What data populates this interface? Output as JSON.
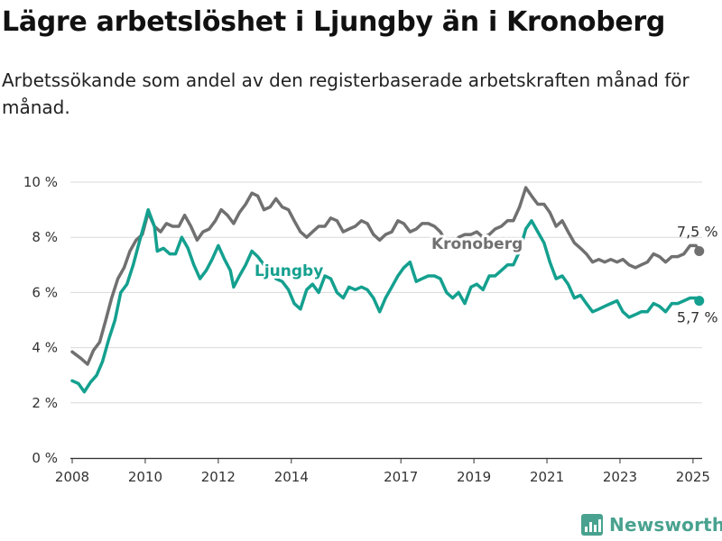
{
  "title": "Lägre arbetslöshet i Ljungby än i Kronoberg",
  "subtitle": "Arbetssökande som andel av den registerbaserade arbetskraften månad för månad.",
  "source_logo": {
    "text": "Newsworthy",
    "icon": "bar-chart-icon"
  },
  "colors": {
    "ljungby": "#14a08f",
    "kronoberg": "#707070",
    "grid": "#d9d9d9",
    "axis": "#333333"
  },
  "chart_data": {
    "type": "line",
    "title": "Lägre arbetslöshet i Ljungby än i Kronoberg",
    "xlabel": "",
    "ylabel": "",
    "xlim": [
      2007.95,
      2025.25
    ],
    "ylim": [
      0,
      10
    ],
    "grid": true,
    "legend": "inline labels",
    "y_ticks": [
      0,
      2,
      4,
      6,
      8,
      10
    ],
    "y_tick_labels": [
      "0 %",
      "2 %",
      "4 %",
      "6 %",
      "8 %",
      "10 %"
    ],
    "x_ticks": [
      2008,
      2010,
      2012,
      2014,
      2017,
      2019,
      2021,
      2023,
      2025
    ],
    "x_tick_labels": [
      "2008",
      "2010",
      "2012",
      "2014",
      "2017",
      "2019",
      "2021",
      "2023",
      "2025"
    ],
    "series": [
      {
        "name": "Kronoberg",
        "end_label": "7,5 %",
        "points": [
          [
            2008.0,
            3.85
          ],
          [
            2008.25,
            3.6
          ],
          [
            2008.42,
            3.4
          ],
          [
            2008.58,
            3.9
          ],
          [
            2008.75,
            4.2
          ],
          [
            2008.92,
            5.0
          ],
          [
            2009.08,
            5.8
          ],
          [
            2009.25,
            6.5
          ],
          [
            2009.42,
            6.9
          ],
          [
            2009.58,
            7.5
          ],
          [
            2009.75,
            7.9
          ],
          [
            2009.92,
            8.1
          ],
          [
            2010.08,
            8.9
          ],
          [
            2010.25,
            8.4
          ],
          [
            2010.42,
            8.2
          ],
          [
            2010.58,
            8.5
          ],
          [
            2010.75,
            8.4
          ],
          [
            2010.92,
            8.4
          ],
          [
            2011.08,
            8.8
          ],
          [
            2011.25,
            8.4
          ],
          [
            2011.42,
            7.9
          ],
          [
            2011.58,
            8.2
          ],
          [
            2011.75,
            8.3
          ],
          [
            2011.92,
            8.6
          ],
          [
            2012.08,
            9.0
          ],
          [
            2012.25,
            8.8
          ],
          [
            2012.42,
            8.5
          ],
          [
            2012.58,
            8.9
          ],
          [
            2012.75,
            9.2
          ],
          [
            2012.92,
            9.6
          ],
          [
            2013.08,
            9.5
          ],
          [
            2013.25,
            9.0
          ],
          [
            2013.42,
            9.1
          ],
          [
            2013.58,
            9.4
          ],
          [
            2013.75,
            9.1
          ],
          [
            2013.92,
            9.0
          ],
          [
            2014.08,
            8.6
          ],
          [
            2014.25,
            8.2
          ],
          [
            2014.42,
            8.0
          ],
          [
            2014.58,
            8.2
          ],
          [
            2014.75,
            8.4
          ],
          [
            2014.92,
            8.4
          ],
          [
            2015.08,
            8.7
          ],
          [
            2015.25,
            8.6
          ],
          [
            2015.42,
            8.2
          ],
          [
            2015.58,
            8.3
          ],
          [
            2015.75,
            8.4
          ],
          [
            2015.92,
            8.6
          ],
          [
            2016.08,
            8.5
          ],
          [
            2016.25,
            8.1
          ],
          [
            2016.42,
            7.9
          ],
          [
            2016.58,
            8.1
          ],
          [
            2016.75,
            8.2
          ],
          [
            2016.92,
            8.6
          ],
          [
            2017.08,
            8.5
          ],
          [
            2017.25,
            8.2
          ],
          [
            2017.42,
            8.3
          ],
          [
            2017.58,
            8.5
          ],
          [
            2017.75,
            8.5
          ],
          [
            2017.92,
            8.4
          ],
          [
            2018.08,
            8.2
          ],
          [
            2018.25,
            7.8
          ],
          [
            2018.42,
            7.7
          ],
          [
            2018.58,
            8.0
          ],
          [
            2018.75,
            8.1
          ],
          [
            2018.92,
            8.1
          ],
          [
            2019.08,
            8.2
          ],
          [
            2019.25,
            8.0
          ],
          [
            2019.42,
            8.1
          ],
          [
            2019.58,
            8.3
          ],
          [
            2019.75,
            8.4
          ],
          [
            2019.92,
            8.6
          ],
          [
            2020.08,
            8.6
          ],
          [
            2020.25,
            9.1
          ],
          [
            2020.42,
            9.8
          ],
          [
            2020.58,
            9.5
          ],
          [
            2020.75,
            9.2
          ],
          [
            2020.92,
            9.2
          ],
          [
            2021.08,
            8.9
          ],
          [
            2021.25,
            8.4
          ],
          [
            2021.42,
            8.6
          ],
          [
            2021.58,
            8.2
          ],
          [
            2021.75,
            7.8
          ],
          [
            2021.92,
            7.6
          ],
          [
            2022.08,
            7.4
          ],
          [
            2022.25,
            7.1
          ],
          [
            2022.42,
            7.2
          ],
          [
            2022.58,
            7.1
          ],
          [
            2022.75,
            7.2
          ],
          [
            2022.92,
            7.1
          ],
          [
            2023.08,
            7.2
          ],
          [
            2023.25,
            7.0
          ],
          [
            2023.42,
            6.9
          ],
          [
            2023.58,
            7.0
          ],
          [
            2023.75,
            7.1
          ],
          [
            2023.92,
            7.4
          ],
          [
            2024.08,
            7.3
          ],
          [
            2024.25,
            7.1
          ],
          [
            2024.42,
            7.3
          ],
          [
            2024.58,
            7.3
          ],
          [
            2024.75,
            7.4
          ],
          [
            2024.92,
            7.7
          ],
          [
            2025.08,
            7.7
          ],
          [
            2025.17,
            7.5
          ]
        ]
      },
      {
        "name": "Ljungby",
        "end_label": "5,7 %",
        "points": [
          [
            2008.0,
            2.8
          ],
          [
            2008.17,
            2.7
          ],
          [
            2008.33,
            2.4
          ],
          [
            2008.5,
            2.75
          ],
          [
            2008.67,
            3.0
          ],
          [
            2008.83,
            3.5
          ],
          [
            2009.0,
            4.3
          ],
          [
            2009.17,
            5.0
          ],
          [
            2009.33,
            6.0
          ],
          [
            2009.5,
            6.3
          ],
          [
            2009.67,
            7.0
          ],
          [
            2009.83,
            7.8
          ],
          [
            2010.0,
            8.6
          ],
          [
            2010.08,
            9.0
          ],
          [
            2010.25,
            8.4
          ],
          [
            2010.33,
            7.5
          ],
          [
            2010.5,
            7.6
          ],
          [
            2010.67,
            7.4
          ],
          [
            2010.83,
            7.4
          ],
          [
            2011.0,
            8.0
          ],
          [
            2011.17,
            7.6
          ],
          [
            2011.33,
            7.0
          ],
          [
            2011.5,
            6.5
          ],
          [
            2011.67,
            6.8
          ],
          [
            2011.83,
            7.2
          ],
          [
            2012.0,
            7.7
          ],
          [
            2012.17,
            7.2
          ],
          [
            2012.33,
            6.8
          ],
          [
            2012.42,
            6.2
          ],
          [
            2012.58,
            6.6
          ],
          [
            2012.75,
            7.0
          ],
          [
            2012.92,
            7.5
          ],
          [
            2013.08,
            7.3
          ],
          [
            2013.25,
            7.0
          ],
          [
            2013.42,
            6.8
          ],
          [
            2013.58,
            6.5
          ],
          [
            2013.75,
            6.4
          ],
          [
            2013.92,
            6.1
          ],
          [
            2014.08,
            5.6
          ],
          [
            2014.25,
            5.4
          ],
          [
            2014.42,
            6.1
          ],
          [
            2014.58,
            6.3
          ],
          [
            2014.75,
            6.0
          ],
          [
            2014.92,
            6.6
          ],
          [
            2015.08,
            6.5
          ],
          [
            2015.25,
            6.0
          ],
          [
            2015.42,
            5.8
          ],
          [
            2015.58,
            6.2
          ],
          [
            2015.75,
            6.1
          ],
          [
            2015.92,
            6.2
          ],
          [
            2016.08,
            6.1
          ],
          [
            2016.25,
            5.8
          ],
          [
            2016.42,
            5.3
          ],
          [
            2016.58,
            5.8
          ],
          [
            2016.75,
            6.2
          ],
          [
            2016.92,
            6.6
          ],
          [
            2017.08,
            6.9
          ],
          [
            2017.25,
            7.1
          ],
          [
            2017.42,
            6.4
          ],
          [
            2017.58,
            6.5
          ],
          [
            2017.75,
            6.6
          ],
          [
            2017.92,
            6.6
          ],
          [
            2018.08,
            6.5
          ],
          [
            2018.25,
            6.0
          ],
          [
            2018.42,
            5.8
          ],
          [
            2018.58,
            6.0
          ],
          [
            2018.75,
            5.6
          ],
          [
            2018.92,
            6.2
          ],
          [
            2019.08,
            6.3
          ],
          [
            2019.25,
            6.1
          ],
          [
            2019.42,
            6.6
          ],
          [
            2019.58,
            6.6
          ],
          [
            2019.75,
            6.8
          ],
          [
            2019.92,
            7.0
          ],
          [
            2020.08,
            7.0
          ],
          [
            2020.25,
            7.5
          ],
          [
            2020.42,
            8.3
          ],
          [
            2020.58,
            8.6
          ],
          [
            2020.75,
            8.2
          ],
          [
            2020.92,
            7.8
          ],
          [
            2021.08,
            7.1
          ],
          [
            2021.25,
            6.5
          ],
          [
            2021.42,
            6.6
          ],
          [
            2021.58,
            6.3
          ],
          [
            2021.75,
            5.8
          ],
          [
            2021.92,
            5.9
          ],
          [
            2022.08,
            5.6
          ],
          [
            2022.25,
            5.3
          ],
          [
            2022.42,
            5.4
          ],
          [
            2022.58,
            5.5
          ],
          [
            2022.75,
            5.6
          ],
          [
            2022.92,
            5.7
          ],
          [
            2023.08,
            5.3
          ],
          [
            2023.25,
            5.1
          ],
          [
            2023.42,
            5.2
          ],
          [
            2023.58,
            5.3
          ],
          [
            2023.75,
            5.3
          ],
          [
            2023.92,
            5.6
          ],
          [
            2024.08,
            5.5
          ],
          [
            2024.25,
            5.3
          ],
          [
            2024.42,
            5.6
          ],
          [
            2024.58,
            5.6
          ],
          [
            2024.75,
            5.7
          ],
          [
            2024.92,
            5.8
          ],
          [
            2025.08,
            5.8
          ],
          [
            2025.17,
            5.7
          ]
        ]
      }
    ]
  }
}
